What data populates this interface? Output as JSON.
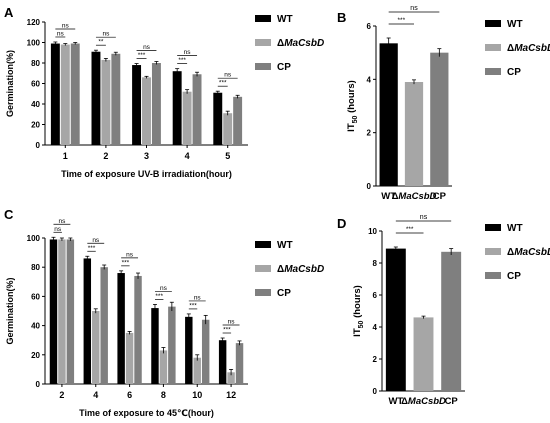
{
  "figure": {
    "colors": {
      "WT": "#000000",
      "MaCsbD": "#a6a6a6",
      "CP": "#7f7f7f"
    },
    "legend_labels": [
      "WT",
      "ΔMaCsbD",
      "CP"
    ]
  },
  "chart_data": [
    {
      "panel": "A",
      "type": "bar",
      "ylabel": "Germination(%)",
      "xlabel": "Time of exposure UV-B irradiation(hour)",
      "ylim": [
        0,
        120
      ],
      "yticks": [
        0,
        20,
        40,
        60,
        80,
        100,
        120
      ],
      "categories": [
        "1",
        "2",
        "3",
        "4",
        "5"
      ],
      "series": [
        {
          "name": "WT",
          "values": [
            99,
            91,
            78,
            72,
            51
          ],
          "err": [
            1.5,
            1.5,
            1.5,
            2.5,
            1.5
          ]
        },
        {
          "name": "ΔMaCsbD",
          "values": [
            98,
            83,
            66,
            52,
            31
          ],
          "err": [
            1,
            1.5,
            1,
            2,
            2
          ]
        },
        {
          "name": "CP",
          "values": [
            99,
            89,
            80,
            69,
            47
          ],
          "err": [
            1,
            1.5,
            1.5,
            2,
            1.5
          ]
        }
      ],
      "significance": [
        "ns",
        "**",
        "***",
        "***",
        "***"
      ],
      "significance_cp": [
        "ns",
        "ns",
        "ns",
        "ns",
        "ns"
      ],
      "legend": [
        "WT",
        "ΔMaCsbD",
        "CP"
      ]
    },
    {
      "panel": "B",
      "type": "bar",
      "ylabel": "IT50 (hours)",
      "ylim": [
        0,
        6
      ],
      "yticks": [
        0,
        2,
        4,
        6
      ],
      "categories": [
        "WT",
        "ΔMaCsbD",
        "CP"
      ],
      "values": [
        5.35,
        3.9,
        5.0
      ],
      "err": [
        0.2,
        0.08,
        0.15
      ],
      "significance": [
        "***",
        "ns"
      ],
      "legend": [
        "WT",
        "ΔMaCsbD",
        "CP"
      ]
    },
    {
      "panel": "C",
      "type": "bar",
      "ylabel": "Germination(%)",
      "xlabel": "Time of exposure to 45℃(hour)",
      "ylim": [
        0,
        100
      ],
      "yticks": [
        0,
        20,
        40,
        60,
        80,
        100
      ],
      "categories": [
        "2",
        "4",
        "6",
        "8",
        "10",
        "12"
      ],
      "series": [
        {
          "name": "WT",
          "values": [
            99,
            86,
            76,
            52,
            46,
            30
          ],
          "err": [
            1.5,
            1.5,
            1.5,
            2.5,
            2,
            1.5
          ]
        },
        {
          "name": "ΔMaCsbD",
          "values": [
            99,
            50,
            35,
            23,
            18,
            8
          ],
          "err": [
            1,
            1.5,
            1,
            2,
            2,
            2
          ]
        },
        {
          "name": "CP",
          "values": [
            99,
            80,
            74,
            53,
            44,
            28
          ],
          "err": [
            1,
            1.5,
            2,
            3,
            3,
            1.5
          ]
        }
      ],
      "significance": [
        "ns",
        "***",
        "***",
        "***",
        "***",
        "***"
      ],
      "significance_cp": [
        "ns",
        "ns",
        "ns",
        "ns",
        "ns",
        "ns"
      ],
      "legend": [
        "WT",
        "ΔMaCsbD",
        "CP"
      ]
    },
    {
      "panel": "D",
      "type": "bar",
      "ylabel": "IT50 (hours)",
      "ylim": [
        0,
        10
      ],
      "yticks": [
        0,
        2,
        4,
        6,
        8,
        10
      ],
      "categories": [
        "WT",
        "ΔMaCsbD",
        "CP"
      ],
      "values": [
        8.9,
        4.6,
        8.7
      ],
      "err": [
        0.1,
        0.08,
        0.2
      ],
      "significance": [
        "***",
        "ns"
      ],
      "legend": [
        "WT",
        "ΔMaCsbD",
        "CP"
      ]
    }
  ]
}
